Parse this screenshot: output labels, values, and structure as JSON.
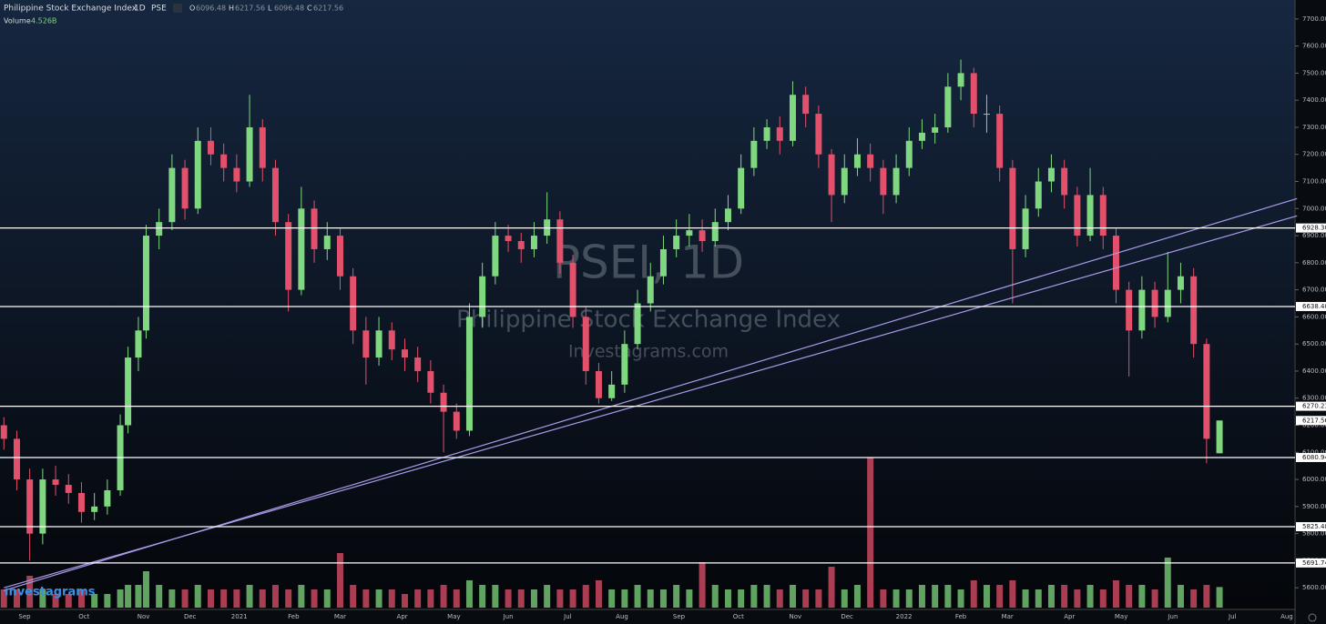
{
  "chart_data": {
    "type": "candlestick",
    "title": "Philippine Stock Exchange Index",
    "interval": "1D",
    "exchange": "PSE",
    "ohlc": [
      {
        "label": "O",
        "value": 6096.48
      },
      {
        "label": "H",
        "value": 6217.56
      },
      {
        "label": "L",
        "value": 6096.48
      },
      {
        "label": "C",
        "value": 6217.56
      }
    ],
    "volume_title": "Volume",
    "volume_last": "4.526B",
    "watermark": [
      "PSEI, 1D",
      "Philippine Stock Exchange Index",
      "Investagrams.com"
    ],
    "logo": "investagrams",
    "up_color": "#7fd87f",
    "down_color": "#e2506b",
    "xlim": [
      -1.5,
      498.5
    ],
    "xticks": [
      {
        "value": 8,
        "label": "Sep"
      },
      {
        "value": 31,
        "label": "Oct"
      },
      {
        "value": 54,
        "label": "Nov"
      },
      {
        "value": 72,
        "label": "Dec"
      },
      {
        "value": 91,
        "label": "2021"
      },
      {
        "value": 112,
        "label": "Feb"
      },
      {
        "value": 130,
        "label": "Mar"
      },
      {
        "value": 154,
        "label": "Apr"
      },
      {
        "value": 174,
        "label": "May"
      },
      {
        "value": 195,
        "label": "Jun"
      },
      {
        "value": 218,
        "label": "Jul"
      },
      {
        "value": 239,
        "label": "Aug"
      },
      {
        "value": 261,
        "label": "Sep"
      },
      {
        "value": 284,
        "label": "Oct"
      },
      {
        "value": 306,
        "label": "Nov"
      },
      {
        "value": 326,
        "label": "Dec"
      },
      {
        "value": 348,
        "label": "2022"
      },
      {
        "value": 370,
        "label": "Feb"
      },
      {
        "value": 388,
        "label": "Mar"
      },
      {
        "value": 412,
        "label": "Apr"
      },
      {
        "value": 432,
        "label": "May"
      },
      {
        "value": 452,
        "label": "Jun"
      },
      {
        "value": 475,
        "label": "Jul"
      },
      {
        "value": 496,
        "label": "Aug"
      }
    ],
    "ylim": [
      5520,
      7770
    ],
    "yticks": [
      {
        "value": 5600,
        "label": "5600.00"
      },
      {
        "value": 5700,
        "label": "5700.00"
      },
      {
        "value": 5800,
        "label": "5800.00"
      },
      {
        "value": 5900,
        "label": "5900.00"
      },
      {
        "value": 6000,
        "label": "6000.00"
      },
      {
        "value": 6100,
        "label": "6100.00"
      },
      {
        "value": 6200,
        "label": "6200.00"
      },
      {
        "value": 6300,
        "label": "6300.00"
      },
      {
        "value": 6400,
        "label": "6400.00"
      },
      {
        "value": 6500,
        "label": "6500.00"
      },
      {
        "value": 6600,
        "label": "6600.00"
      },
      {
        "value": 6700,
        "label": "6700.00"
      },
      {
        "value": 6800,
        "label": "6800.00"
      },
      {
        "value": 6900,
        "label": "6900.00"
      },
      {
        "value": 7000,
        "label": "7000.00"
      },
      {
        "value": 7100,
        "label": "7100.00"
      },
      {
        "value": 7200,
        "label": "7200.00"
      },
      {
        "value": 7300,
        "label": "7300.00"
      },
      {
        "value": 7400,
        "label": "7400.00"
      },
      {
        "value": 7500,
        "label": "7500.00"
      },
      {
        "value": 7600,
        "label": "7600.00"
      },
      {
        "value": 7700,
        "label": "7700.00"
      }
    ],
    "levels": [
      {
        "value": 6928.3,
        "label": "6928.30"
      },
      {
        "value": 6638.4,
        "label": "6638.40"
      },
      {
        "value": 6270.23,
        "label": "6270.23"
      },
      {
        "value": 6080.94,
        "label": "6080.94"
      },
      {
        "value": 5825.48,
        "label": "5825.48"
      },
      {
        "value": 5691.74,
        "label": "5691.74"
      }
    ],
    "last_price": 6217.56,
    "trendlines": [
      {
        "x": [
          0,
          500
        ],
        "y": [
          5590,
          7037
        ],
        "color": "#a99be8"
      },
      {
        "x": [
          0,
          500
        ],
        "y": [
          5600,
          6973
        ],
        "color": "#a99be8"
      }
    ],
    "x": [
      0,
      5,
      10,
      15,
      20,
      25,
      30,
      35,
      40,
      45,
      48,
      52,
      55,
      60,
      65,
      70,
      75,
      80,
      85,
      90,
      95,
      100,
      105,
      110,
      115,
      120,
      125,
      130,
      135,
      140,
      145,
      150,
      155,
      160,
      165,
      170,
      175,
      180,
      185,
      190,
      195,
      200,
      205,
      210,
      215,
      220,
      225,
      230,
      235,
      240,
      245,
      250,
      255,
      260,
      265,
      270,
      275,
      280,
      285,
      290,
      295,
      300,
      305,
      310,
      315,
      320,
      325,
      330,
      335,
      340,
      345,
      350,
      355,
      360,
      365,
      370,
      375,
      380,
      385,
      390,
      395,
      400,
      405,
      410,
      415,
      420,
      425,
      430,
      435,
      440,
      445,
      450,
      455,
      460,
      465,
      470
    ],
    "open": [
      6200,
      6150,
      6000,
      5800,
      6000,
      5980,
      5950,
      5880,
      5900,
      5960,
      6200,
      6450,
      6550,
      6900,
      6950,
      7150,
      7000,
      7250,
      7200,
      7150,
      7100,
      7300,
      7150,
      6950,
      6700,
      7000,
      6850,
      6900,
      6750,
      6550,
      6450,
      6550,
      6480,
      6450,
      6400,
      6320,
      6250,
      6180,
      6600,
      6750,
      6900,
      6880,
      6850,
      6900,
      6960,
      6800,
      6600,
      6400,
      6300,
      6350,
      6500,
      6650,
      6750,
      6850,
      6900,
      6920,
      6880,
      6950,
      7000,
      7150,
      7250,
      7300,
      7250,
      7420,
      7350,
      7200,
      7050,
      7150,
      7200,
      7150,
      7050,
      7150,
      7250,
      7280,
      7300,
      7450,
      7500,
      7350,
      7350,
      7150,
      6850,
      7000,
      7100,
      7150,
      7050,
      6900,
      7050,
      6900,
      6700,
      6550,
      6700,
      6600,
      6700,
      6750,
      6500,
      6096.48
    ],
    "high": [
      6230,
      6180,
      6040,
      6040,
      6050,
      6020,
      5990,
      5950,
      6000,
      6240,
      6490,
      6600,
      6940,
      7000,
      7200,
      7180,
      7300,
      7300,
      7240,
      7200,
      7420,
      7330,
      7180,
      6980,
      7080,
      7030,
      6950,
      6930,
      6780,
      6600,
      6600,
      6580,
      6520,
      6490,
      6440,
      6350,
      6280,
      6650,
      6800,
      6950,
      6940,
      6910,
      6950,
      7060,
      6990,
      6830,
      6640,
      6430,
      6400,
      6550,
      6700,
      6800,
      6900,
      6960,
      6980,
      6960,
      7000,
      7050,
      7200,
      7300,
      7330,
      7340,
      7470,
      7450,
      7380,
      7220,
      7200,
      7260,
      7240,
      7180,
      7200,
      7300,
      7330,
      7350,
      7500,
      7550,
      7520,
      7420,
      7380,
      7180,
      7050,
      7150,
      7200,
      7180,
      7080,
      7150,
      7080,
      6930,
      6730,
      6750,
      6730,
      6840,
      6800,
      6780,
      6520,
      6217.56
    ],
    "low": [
      6110,
      5960,
      5700,
      5760,
      5940,
      5910,
      5840,
      5850,
      5870,
      5940,
      6170,
      6400,
      6520,
      6850,
      6920,
      6960,
      6980,
      7160,
      7100,
      7060,
      7080,
      7100,
      6900,
      6620,
      6680,
      6800,
      6810,
      6700,
      6500,
      6350,
      6420,
      6440,
      6400,
      6360,
      6280,
      6100,
      6150,
      6160,
      6560,
      6720,
      6840,
      6800,
      6820,
      6870,
      6760,
      6560,
      6350,
      6280,
      6290,
      6320,
      6480,
      6620,
      6720,
      6820,
      6860,
      6840,
      6860,
      6920,
      6980,
      7120,
      7220,
      7200,
      7230,
      7300,
      7150,
      6950,
      7020,
      7120,
      7100,
      6980,
      7020,
      7120,
      7220,
      7240,
      7280,
      7400,
      7300,
      7280,
      7100,
      6650,
      6820,
      6970,
      7060,
      7000,
      6860,
      6880,
      6850,
      6650,
      6380,
      6520,
      6560,
      6580,
      6650,
      6450,
      6060,
      6096.48
    ],
    "close": [
      6150,
      6000,
      5800,
      6000,
      5980,
      5950,
      5880,
      5900,
      5960,
      6200,
      6450,
      6550,
      6900,
      6950,
      7150,
      7000,
      7250,
      7200,
      7150,
      7100,
      7300,
      7150,
      6950,
      6700,
      7000,
      6850,
      6900,
      6750,
      6550,
      6450,
      6550,
      6480,
      6450,
      6400,
      6320,
      6250,
      6180,
      6600,
      6750,
      6900,
      6880,
      6850,
      6900,
      6960,
      6800,
      6600,
      6400,
      6300,
      6350,
      6500,
      6650,
      6750,
      6850,
      6900,
      6920,
      6880,
      6950,
      7000,
      7150,
      7250,
      7300,
      7250,
      7420,
      7350,
      7200,
      7050,
      7150,
      7200,
      7150,
      7050,
      7150,
      7250,
      7280,
      7300,
      7450,
      7500,
      7350,
      7350,
      7150,
      6850,
      7000,
      7100,
      7150,
      7050,
      6900,
      7050,
      6900,
      6700,
      6550,
      6700,
      6600,
      6700,
      6750,
      6500,
      6150,
      6217.56
    ],
    "volume": [
      4,
      4,
      7,
      4,
      3,
      3,
      4,
      3,
      3,
      4,
      5,
      5,
      8,
      5,
      4,
      4,
      5,
      4,
      4,
      4,
      5,
      4,
      5,
      4,
      5,
      4,
      4,
      12,
      5,
      4,
      4,
      4,
      3,
      4,
      4,
      5,
      4,
      6,
      5,
      5,
      4,
      4,
      4,
      5,
      4,
      4,
      5,
      6,
      4,
      4,
      5,
      4,
      4,
      5,
      4,
      10,
      5,
      4,
      4,
      5,
      5,
      4,
      5,
      4,
      4,
      9,
      4,
      5,
      33,
      4,
      4,
      4,
      5,
      5,
      5,
      4,
      6,
      5,
      5,
      6,
      4,
      4,
      5,
      5,
      4,
      5,
      4,
      6,
      5,
      5,
      4,
      11,
      5,
      4,
      5,
      4.526
    ]
  }
}
